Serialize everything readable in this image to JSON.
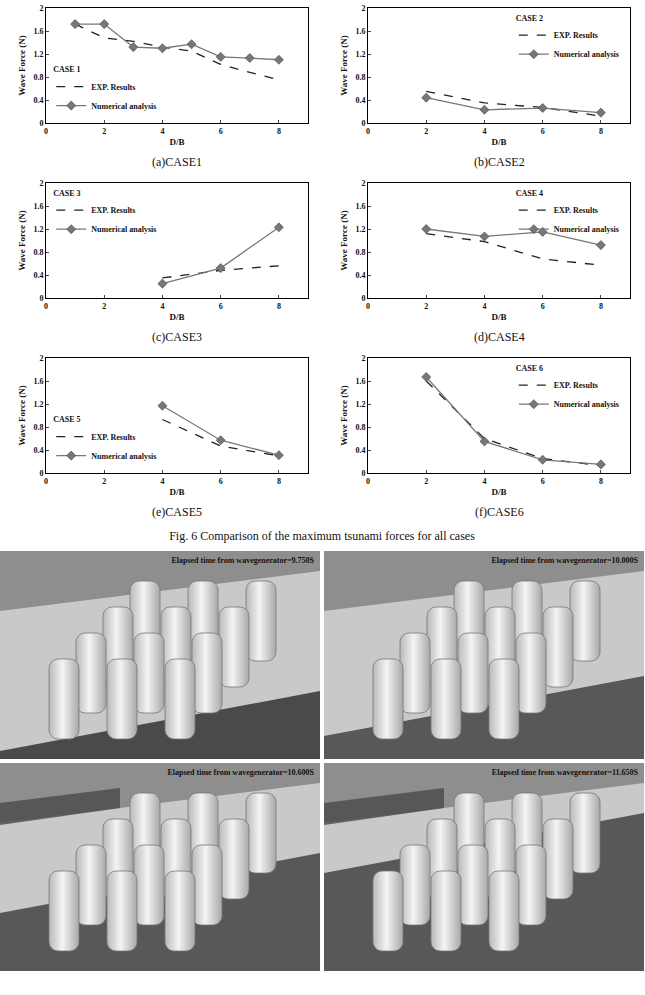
{
  "chart_data": [
    {
      "type": "line",
      "title": "(a)CASE1",
      "annotations": [
        "CASE 1"
      ],
      "x_label": "D/B",
      "y_label": "Wave Force (N)",
      "x": [
        1,
        2,
        3,
        4,
        5,
        6,
        7,
        8
      ],
      "series": [
        {
          "name": "EXP. Results",
          "color": "#222222",
          "line_style": "dashed",
          "marker": "none",
          "values": [
            1.72,
            1.48,
            1.42,
            1.32,
            1.25,
            1.02,
            0.88,
            0.75
          ]
        },
        {
          "name": "Numerical analysis",
          "color": "#777777",
          "line_style": "solid",
          "marker": "diamond",
          "values": [
            1.72,
            1.72,
            1.32,
            1.3,
            1.37,
            1.15,
            1.13,
            1.1
          ]
        }
      ],
      "xlim": [
        0,
        9
      ],
      "xticks": [
        0,
        2,
        4,
        6,
        8
      ],
      "ylim": [
        0,
        2
      ],
      "yticks": [
        0,
        0.4,
        0.8,
        1.2,
        1.6,
        2
      ],
      "legend": "lower left",
      "grid": false
    },
    {
      "type": "line",
      "title": "(b)CASE2",
      "annotations": [
        "CASE 2"
      ],
      "x_label": "D/B",
      "y_label": "Wave Force (N)",
      "x": [
        2,
        4,
        6,
        8
      ],
      "series": [
        {
          "name": "EXP. Results",
          "color": "#222222",
          "line_style": "dashed",
          "marker": "none",
          "values": [
            0.55,
            0.35,
            0.27,
            0.12
          ]
        },
        {
          "name": "Numerical analysis",
          "color": "#777777",
          "line_style": "solid",
          "marker": "diamond",
          "values": [
            0.44,
            0.23,
            0.26,
            0.18
          ]
        }
      ],
      "xlim": [
        0,
        9
      ],
      "xticks": [
        0,
        2,
        4,
        6,
        8
      ],
      "ylim": [
        0,
        2
      ],
      "yticks": [
        0,
        0.4,
        0.8,
        1.2,
        1.6,
        2
      ],
      "legend": "upper right",
      "grid": false
    },
    {
      "type": "line",
      "title": "(c)CASE3",
      "annotations": [
        "CASE 3"
      ],
      "x_label": "D/B",
      "y_label": "Wave Force (N)",
      "x": [
        4,
        6,
        8
      ],
      "series": [
        {
          "name": "EXP. Results",
          "color": "#222222",
          "line_style": "dashed",
          "marker": "none",
          "values": [
            0.35,
            0.48,
            0.56
          ]
        },
        {
          "name": "Numerical analysis",
          "color": "#777777",
          "line_style": "solid",
          "marker": "diamond",
          "values": [
            0.25,
            0.52,
            1.23
          ]
        }
      ],
      "xlim": [
        0,
        9
      ],
      "xticks": [
        0,
        2,
        4,
        6,
        8
      ],
      "ylim": [
        0,
        2
      ],
      "yticks": [
        0,
        0.4,
        0.8,
        1.2,
        1.6,
        2
      ],
      "legend": "upper left",
      "grid": false
    },
    {
      "type": "line",
      "title": "(d)CASE4",
      "annotations": [
        "CASE 4"
      ],
      "x_label": "D/B",
      "y_label": "Wave Force (N)",
      "x": [
        2,
        4,
        6,
        8
      ],
      "series": [
        {
          "name": "EXP. Results",
          "color": "#222222",
          "line_style": "dashed",
          "marker": "none",
          "values": [
            1.12,
            0.98,
            0.68,
            0.57
          ]
        },
        {
          "name": "Numerical analysis",
          "color": "#777777",
          "line_style": "solid",
          "marker": "diamond",
          "values": [
            1.2,
            1.07,
            1.15,
            0.92
          ]
        }
      ],
      "xlim": [
        0,
        9
      ],
      "xticks": [
        0,
        2,
        4,
        6,
        8
      ],
      "ylim": [
        0,
        2
      ],
      "yticks": [
        0,
        0.4,
        0.8,
        1.2,
        1.6,
        2
      ],
      "legend": "upper right",
      "grid": false
    },
    {
      "type": "line",
      "title": "(e)CASE5",
      "annotations": [
        "CASE 5"
      ],
      "x_label": "D/B",
      "y_label": "Wave Force (N)",
      "x": [
        4,
        6,
        8
      ],
      "series": [
        {
          "name": "EXP. Results",
          "color": "#222222",
          "line_style": "dashed",
          "marker": "none",
          "values": [
            0.93,
            0.47,
            0.3
          ]
        },
        {
          "name": "Numerical analysis",
          "color": "#777777",
          "line_style": "solid",
          "marker": "diamond",
          "values": [
            1.17,
            0.57,
            0.31
          ]
        }
      ],
      "xlim": [
        0,
        9
      ],
      "xticks": [
        0,
        2,
        4,
        6,
        8
      ],
      "ylim": [
        0,
        2
      ],
      "yticks": [
        0,
        0.4,
        0.8,
        1.2,
        1.6,
        2
      ],
      "legend": "lower left",
      "grid": false
    },
    {
      "type": "line",
      "title": "(f)CASE6",
      "annotations": [
        "CASE 6"
      ],
      "x_label": "D/B",
      "y_label": "Wave Force (N)",
      "x": [
        2,
        4,
        6,
        8
      ],
      "series": [
        {
          "name": "EXP. Results",
          "color": "#222222",
          "line_style": "dashed",
          "marker": "none",
          "values": [
            1.6,
            0.6,
            0.25,
            0.13
          ]
        },
        {
          "name": "Numerical analysis",
          "color": "#777777",
          "line_style": "solid",
          "marker": "diamond",
          "values": [
            1.67,
            0.55,
            0.23,
            0.15
          ]
        }
      ],
      "xlim": [
        0,
        9
      ],
      "xticks": [
        0,
        2,
        4,
        6,
        8
      ],
      "ylim": [
        0,
        2
      ],
      "yticks": [
        0,
        0.4,
        0.8,
        1.2,
        1.6,
        2
      ],
      "legend": "upper right",
      "grid": false
    }
  ],
  "caption": "Fig. 6 Comparison of the maximum tsunami forces for all cases",
  "renderings": [
    {
      "label": "Elapsed time from wavegenerator=9.750S"
    },
    {
      "label": "Elapsed time from wavegenerator=10.000S"
    },
    {
      "label": "Elapsed time from wavegenerator=10.600S"
    },
    {
      "label": "Elapsed time from wavegenerator=11.650S"
    }
  ]
}
